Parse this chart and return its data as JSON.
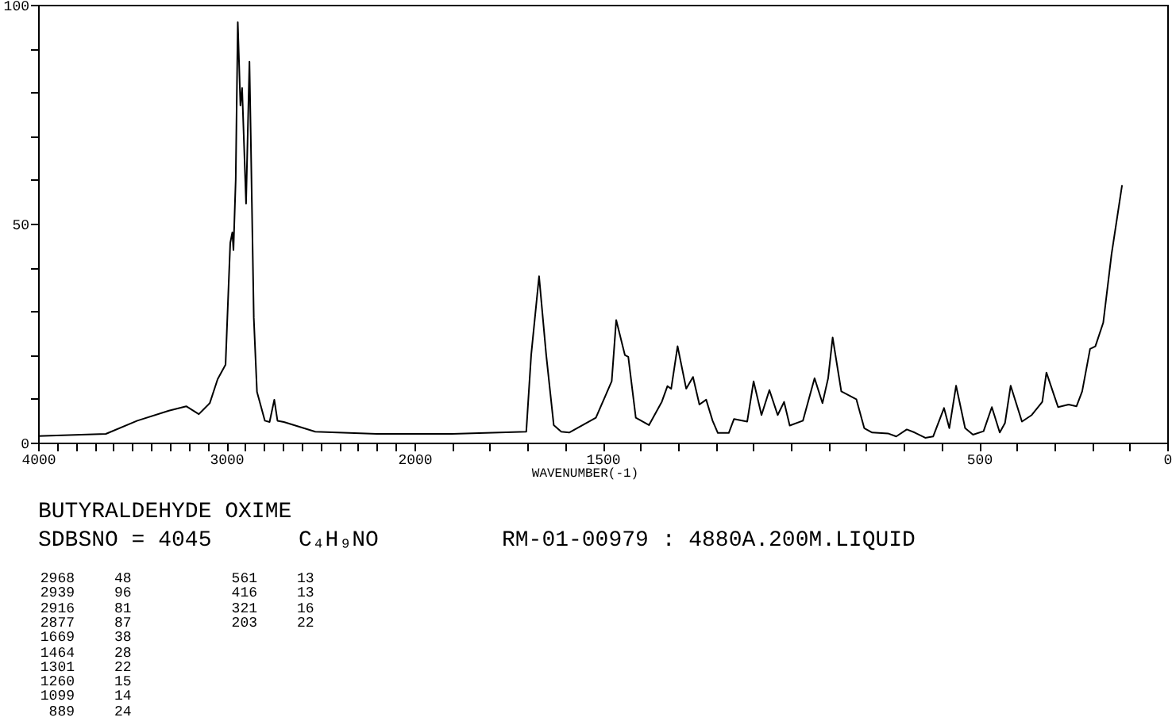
{
  "chart_data": [
    {
      "type": "line",
      "title": "BUTYRALDEHYDE OXIME",
      "annotations": [
        "SDBSNO = 4045",
        "C₄H₉NO",
        "RM-01-00979 : 4880A.200M.LIQUID",
        "2968",
        "48",
        "2939",
        "96",
        "2916",
        "81",
        "2877",
        "87",
        "1669",
        "38",
        "1464",
        "28",
        "1301",
        "22",
        "1260",
        "15",
        "1099",
        "14",
        "889",
        "24",
        "561",
        "13",
        "416",
        "13",
        "321",
        "16",
        "203",
        "22"
      ],
      "x": [
        4000,
        3640,
        3473,
        3305,
        3213,
        3146,
        3088,
        3046,
        3004,
        2979,
        2968,
        2962,
        2950,
        2939,
        2925,
        2916,
        2895,
        2877,
        2870,
        2854,
        2837,
        2795,
        2770,
        2745,
        2728,
        2694,
        2527,
        2200,
        2000
      ],
      "series": [
        {
          "color": "#000000",
          "values": [
            1.5,
            2,
            5,
            7.3,
            8.3,
            6.5,
            9,
            14.5,
            17.8,
            45.6,
            48,
            44,
            60,
            96,
            77,
            81,
            54.6,
            87,
            70,
            28.6,
            11.6,
            5,
            4.7,
            9.8,
            5,
            4.7,
            2.5,
            2,
            2
          ]
        }
      ],
      "xlim": [
        4000,
        2000
      ],
      "xticks": [
        4000,
        {
          "value": 3900,
          "label": null
        },
        {
          "value": 3800,
          "label": null
        },
        {
          "value": 3700,
          "label": null
        },
        {
          "value": 3600,
          "label": null
        },
        {
          "value": 3500,
          "label": null
        },
        {
          "value": 3400,
          "label": null
        },
        {
          "value": 3300,
          "label": null
        },
        {
          "value": 3200,
          "label": null
        },
        {
          "value": 3100,
          "label": null
        },
        3000,
        {
          "value": 2900,
          "label": null
        },
        {
          "value": 2800,
          "label": null
        },
        {
          "value": 2700,
          "label": null
        },
        {
          "value": 2600,
          "label": null
        },
        {
          "value": 2500,
          "label": null
        },
        {
          "value": 2400,
          "label": null
        },
        {
          "value": 2300,
          "label": null
        },
        {
          "value": 2200,
          "label": null
        },
        {
          "value": 2100,
          "label": null
        },
        2000
      ],
      "ylim": [
        0,
        100
      ],
      "yticks": [
        0,
        {
          "value": 10,
          "label": null
        },
        {
          "value": 20,
          "label": null
        },
        {
          "value": 30,
          "label": null
        },
        {
          "value": 40,
          "label": null
        },
        50,
        {
          "value": 60,
          "label": null
        },
        {
          "value": 70,
          "label": null
        },
        {
          "value": 80,
          "label": null
        },
        {
          "value": 90,
          "label": null
        },
        100
      ],
      "grid": false,
      "marker": "none",
      "line_style": "solid"
    },
    {
      "type": "line",
      "xlabel": "WAVENUMBER(-1)",
      "x": [
        2000,
        1900,
        1703,
        1690,
        1669,
        1650,
        1630,
        1610,
        1589,
        1518,
        1476,
        1464,
        1441,
        1432,
        1412,
        1377,
        1343,
        1328,
        1318,
        1301,
        1278,
        1260,
        1243,
        1225,
        1208,
        1194,
        1165,
        1151,
        1116,
        1099,
        1078,
        1057,
        1035,
        1018,
        1003,
        968,
        937,
        916,
        901,
        889,
        866,
        826,
        805,
        784,
        742,
        720,
        692,
        671,
        643,
        622,
        593,
        579,
        561,
        537,
        516,
        488,
        466,
        445,
        431,
        416,
        386,
        360,
        332,
        321,
        290,
        262,
        241,
        226,
        205,
        191,
        170,
        148,
        120
      ],
      "series": [
        {
          "color": "#000000",
          "values": [
            2,
            2,
            2.5,
            20,
            38,
            20,
            4,
            2.5,
            2.3,
            5.7,
            14,
            28,
            20,
            19.6,
            5.7,
            4,
            9.3,
            12.9,
            12.3,
            22,
            12.3,
            15,
            8.7,
            9.8,
            5,
            2.2,
            2.2,
            5.4,
            4.8,
            14,
            6.3,
            12,
            6.3,
            9.3,
            3.9,
            5,
            14.7,
            9,
            14.7,
            24,
            11.7,
            9.9,
            3.3,
            2.3,
            2.1,
            1.4,
            3,
            2.3,
            1.1,
            1.4,
            7.9,
            3.3,
            13,
            3.3,
            1.8,
            2.6,
            8.1,
            2.3,
            4.5,
            13,
            4.8,
            6.3,
            9.3,
            16,
            8.1,
            8.7,
            8.3,
            11.7,
            21.4,
            22,
            27.4,
            43,
            58.8
          ]
        }
      ],
      "xlim": [
        2000,
        0
      ],
      "xticks": [
        {
          "value": 1900,
          "label": null
        },
        {
          "value": 1800,
          "label": null
        },
        {
          "value": 1700,
          "label": null
        },
        {
          "value": 1600,
          "label": null
        },
        1500,
        {
          "value": 1400,
          "label": null
        },
        {
          "value": 1300,
          "label": null
        },
        {
          "value": 1200,
          "label": null
        },
        {
          "value": 1100,
          "label": null
        },
        {
          "value": 1000,
          "label": null
        },
        {
          "value": 900,
          "label": null
        },
        {
          "value": 800,
          "label": null
        },
        {
          "value": 700,
          "label": null
        },
        {
          "value": 600,
          "label": null
        },
        500,
        {
          "value": 400,
          "label": null
        },
        {
          "value": 300,
          "label": null
        },
        {
          "value": 200,
          "label": null
        },
        {
          "value": 100,
          "label": null
        },
        0
      ],
      "ylim": [
        0,
        100
      ],
      "tick_labels": "x",
      "grid": false,
      "marker": "none",
      "line_style": "solid"
    }
  ]
}
